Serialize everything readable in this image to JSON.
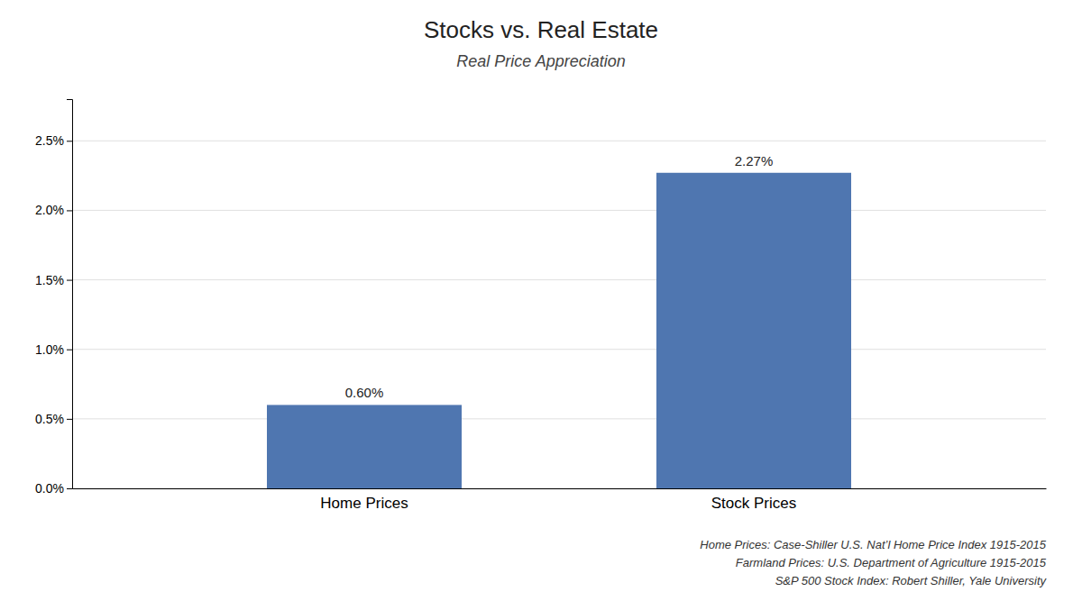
{
  "chart_data": {
    "type": "bar",
    "title": "Stocks vs. Real Estate",
    "subtitle": "Real Price Appreciation",
    "categories": [
      "Home Prices",
      "Stock Prices"
    ],
    "values": [
      0.006,
      0.0227
    ],
    "value_labels": [
      "0.60%",
      "2.27%"
    ],
    "data_labels": true,
    "colors": [
      "#4f76b0",
      "#4f76b0"
    ],
    "ylim": [
      0,
      0.028
    ],
    "yticks": [
      {
        "value": 0.0,
        "label": "0.0%"
      },
      {
        "value": 0.005,
        "label": "0.5%"
      },
      {
        "value": 0.01,
        "label": "1.0%"
      },
      {
        "value": 0.015,
        "label": "1.5%"
      },
      {
        "value": 0.02,
        "label": "2.0%"
      },
      {
        "value": 0.025,
        "label": "2.5%"
      }
    ],
    "grid": true,
    "annotations": [
      "Home Prices: Case-Shiller U.S. Nat’l Home Price Index 1915-2015",
      "Farmland Prices: U.S. Department of Agriculture 1915-2015",
      "S&P 500 Stock Index: Robert Shiller, Yale University"
    ]
  }
}
